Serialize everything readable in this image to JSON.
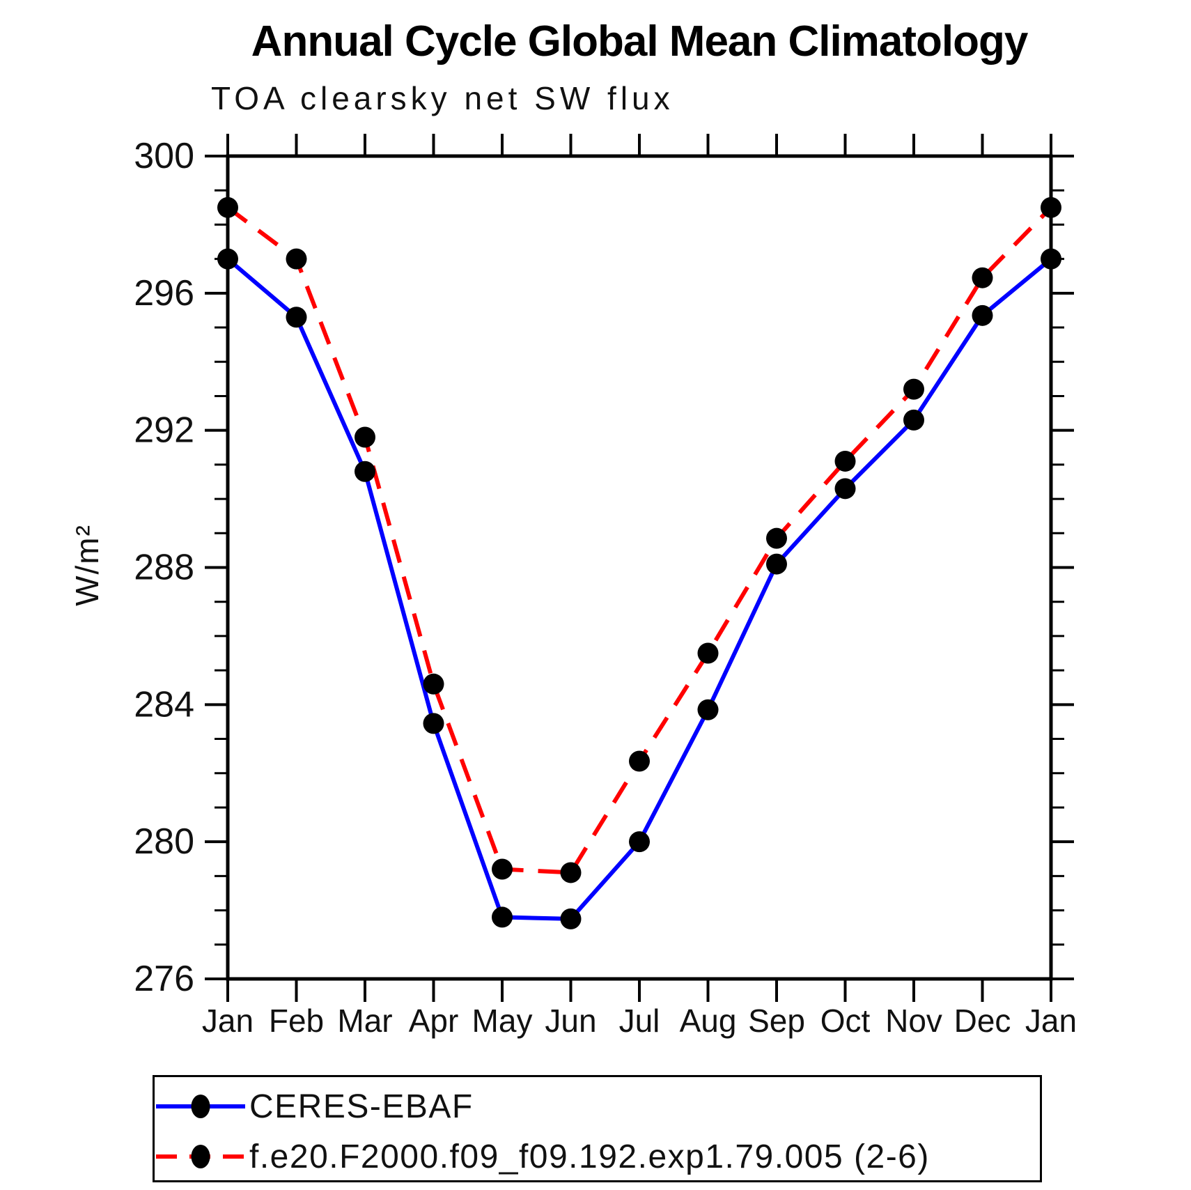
{
  "chart_data": {
    "type": "line",
    "title": "Annual Cycle Global Mean Climatology",
    "subtitle": "TOA clearsky net SW flux",
    "ylabel": "W/m²",
    "x_categories": [
      "Jan",
      "Feb",
      "Mar",
      "Apr",
      "May",
      "Jun",
      "Jul",
      "Aug",
      "Sep",
      "Oct",
      "Nov",
      "Dec",
      "Jan"
    ],
    "ylim": [
      276,
      300
    ],
    "yticks_major": [
      276,
      280,
      284,
      288,
      292,
      296,
      300
    ],
    "ytick_minor_step": 1,
    "grid": false,
    "legend_position": "bottom",
    "marker": "filled-circle",
    "marker_color": "#000000",
    "axis_color": "#000000",
    "series": [
      {
        "name": "CERES-EBAF",
        "color": "#0000ff",
        "line_style": "solid",
        "values": [
          297.0,
          295.3,
          290.8,
          283.45,
          277.8,
          277.75,
          280.0,
          283.85,
          288.1,
          290.3,
          292.3,
          295.35,
          297.0
        ]
      },
      {
        "name": "f.e20.F2000.f09_f09.192.exp1.79.005 (2-6)",
        "color": "#ff0000",
        "line_style": "dashed",
        "values": [
          298.5,
          297.0,
          291.8,
          284.6,
          279.2,
          279.1,
          282.35,
          285.5,
          288.85,
          291.1,
          293.2,
          296.45,
          298.5
        ]
      }
    ]
  }
}
